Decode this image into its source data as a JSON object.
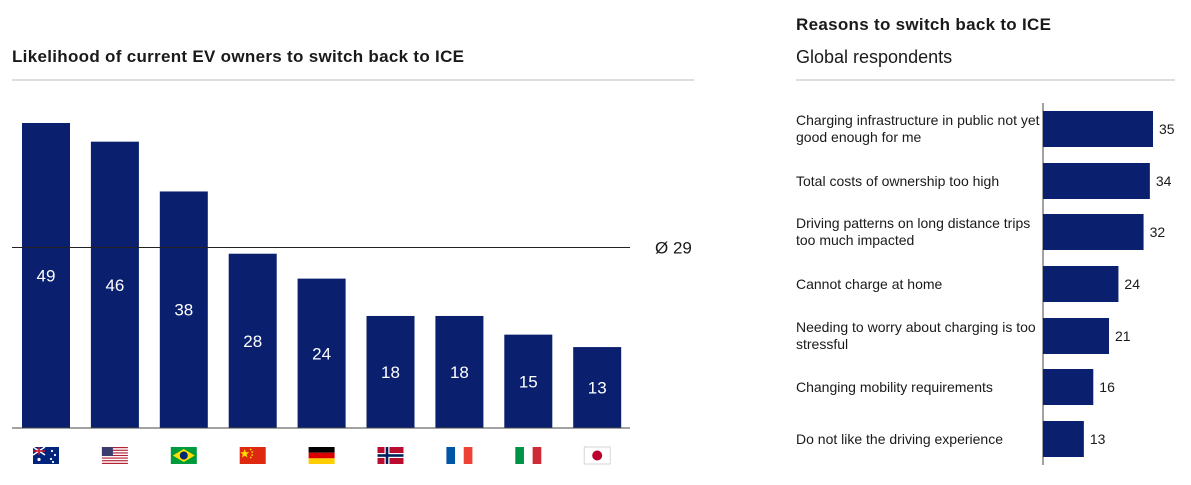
{
  "chart_data": [
    {
      "type": "bar",
      "title": "Likelihood of current EV owners to switch back to ICE",
      "categories": [
        "Australia",
        "USA",
        "Brazil",
        "China",
        "Germany",
        "Norway",
        "France",
        "Italy",
        "Japan"
      ],
      "values": [
        49,
        46,
        38,
        28,
        24,
        18,
        18,
        15,
        13
      ],
      "average": 29,
      "average_label": "Ø 29",
      "bar_color": "#0a1f6e",
      "ylim": [
        0,
        55
      ]
    },
    {
      "type": "bar",
      "orientation": "horizontal",
      "title": "Reasons to switch back to ICE",
      "subtitle": "Global respondents",
      "categories": [
        "Charging infrastructure in public not yet good enough for me",
        "Total costs of ownership too high",
        "Driving patterns on long distance trips too much impacted",
        "Cannot charge at home",
        "Needing to worry about charging is too stressful",
        "Changing mobility requirements",
        "Do not like the driving experience"
      ],
      "values": [
        35,
        34,
        32,
        24,
        21,
        16,
        13
      ],
      "bar_color": "#0a1f6e",
      "xlim": [
        0,
        35
      ]
    }
  ]
}
